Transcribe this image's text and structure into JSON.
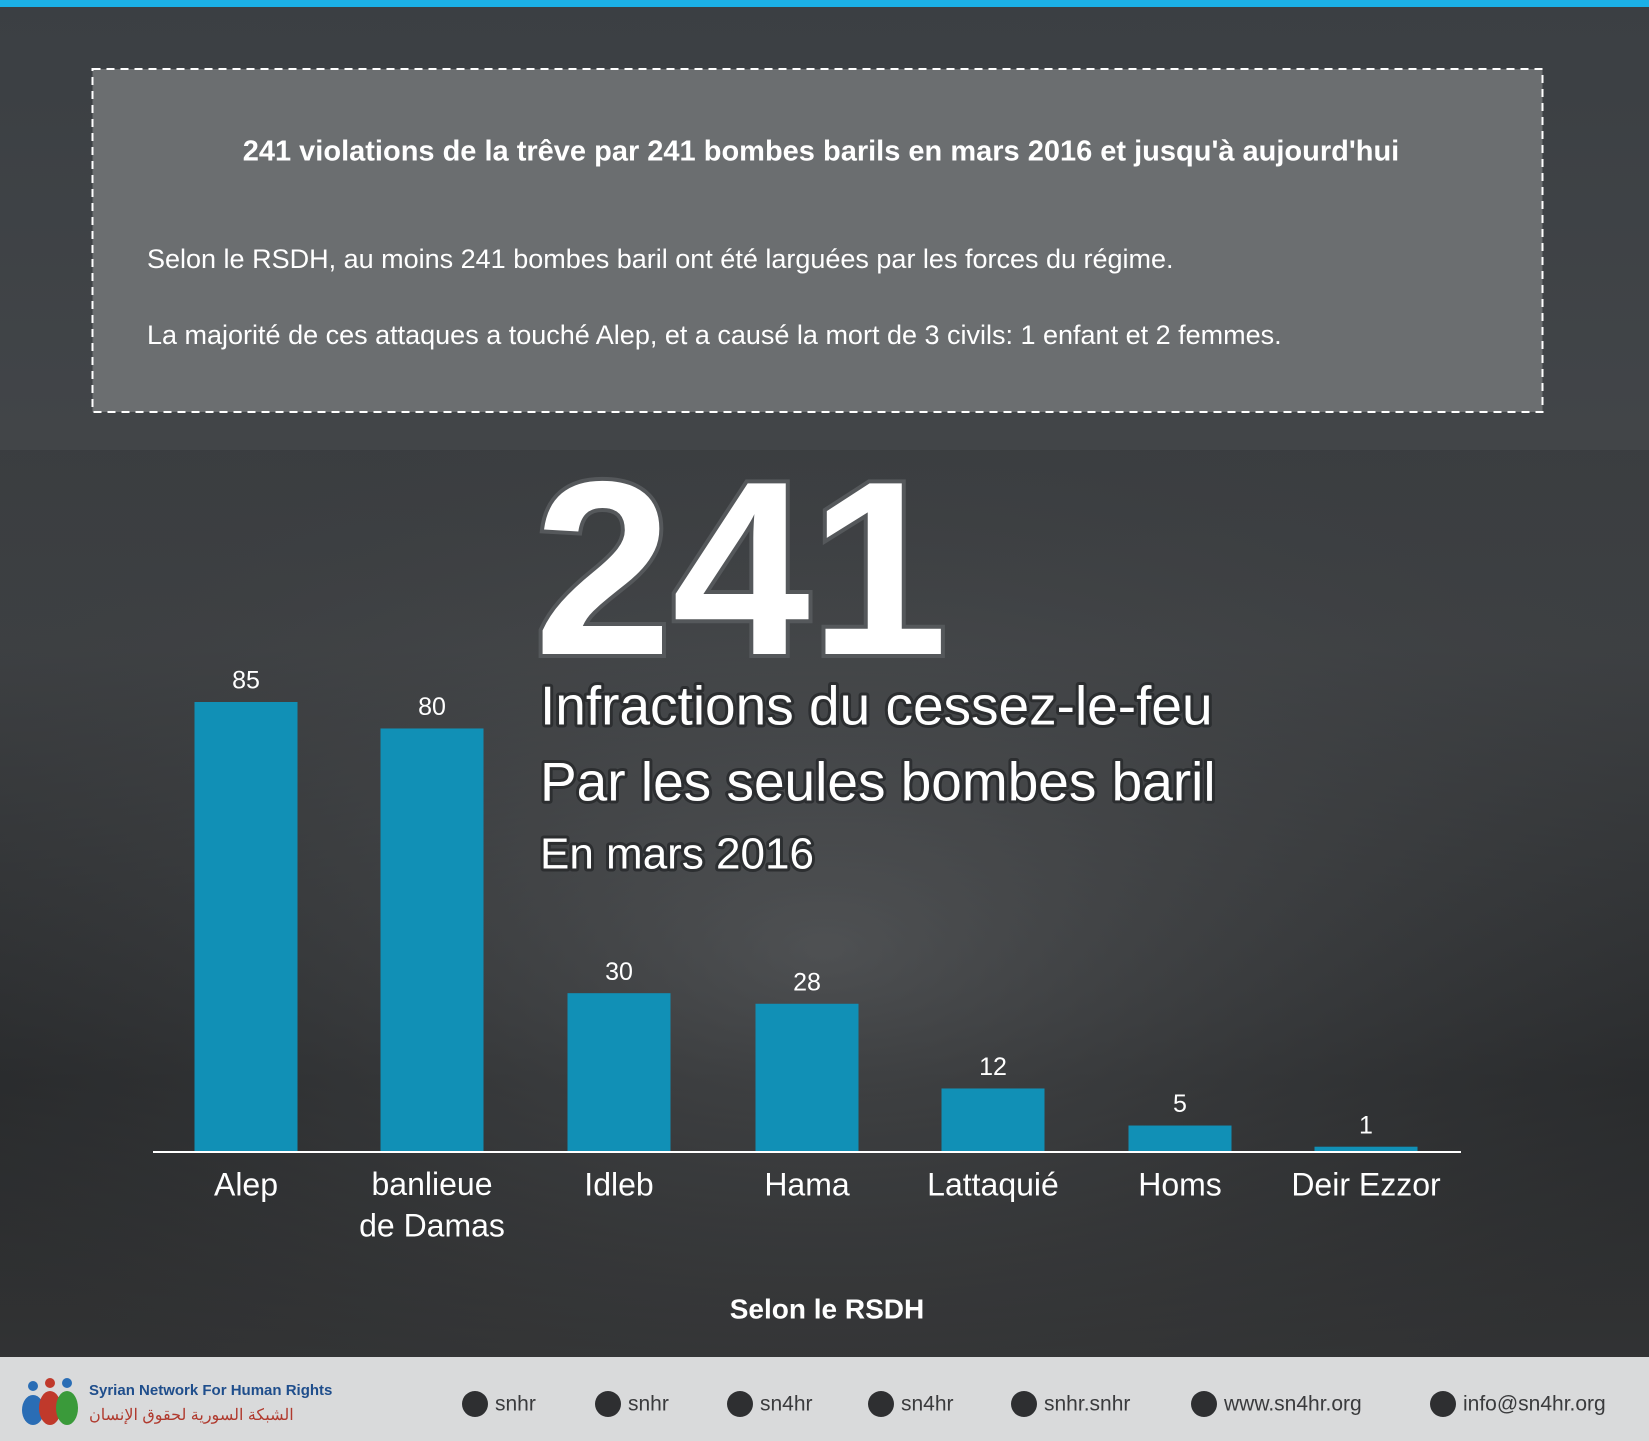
{
  "summary_box": {
    "title": "241 violations de la trêve par 241 bombes barils en mars 2016 et jusqu'à aujourd'hui",
    "paragraphs": [
      "Selon le RSDH, au moins 241 bombes baril ont été larguées par les forces du régime.",
      "La majorité de ces attaques a touché Alep, et a causé la mort de 3 civils: 1 enfant et 2 femmes."
    ]
  },
  "headline": {
    "number": "241",
    "lines": [
      "Infractions du cessez-le-feu",
      "Par les seules bombes baril"
    ],
    "subtitle": "En mars 2016"
  },
  "chart_data": {
    "type": "bar",
    "categories": [
      "Alep",
      "banlieue\nde Damas",
      "Idleb",
      "Hama",
      "Lattaquié",
      "Homs",
      "Deir Ezzor"
    ],
    "values": [
      85,
      80,
      30,
      28,
      12,
      5,
      1
    ],
    "color": "#1190b6"
  },
  "source": "Selon le RSDH",
  "footer": {
    "org_name": "Syrian Network For Human Rights",
    "org_name_ar": "الشبكة السورية لحقوق الإنسان",
    "links": [
      "snhr",
      "snhr",
      "sn4hr",
      "sn4hr",
      "snhr.snhr",
      "www.sn4hr.org",
      "info@sn4hr.org"
    ]
  }
}
